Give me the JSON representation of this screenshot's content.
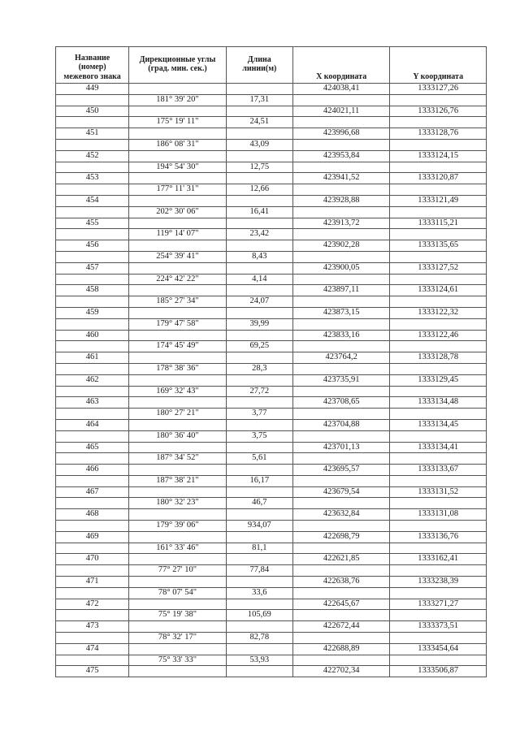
{
  "table": {
    "headers": {
      "name": [
        "Название",
        "(номер)",
        "межевого знака"
      ],
      "angle": [
        "Дирекционные углы",
        "(град. мин. сек.)"
      ],
      "length": [
        "Длина",
        "линии(м)"
      ],
      "x": [
        "X координата"
      ],
      "y": [
        "Y координата"
      ]
    },
    "points": [
      {
        "name": "449",
        "x": "424038,41",
        "y": "1333127,26"
      },
      {
        "name": "450",
        "x": "424021,11",
        "y": "1333126,76"
      },
      {
        "name": "451",
        "x": "423996,68",
        "y": "1333128,76"
      },
      {
        "name": "452",
        "x": "423953,84",
        "y": "1333124,15"
      },
      {
        "name": "453",
        "x": "423941,52",
        "y": "1333120,87"
      },
      {
        "name": "454",
        "x": "423928,88",
        "y": "1333121,49"
      },
      {
        "name": "455",
        "x": "423913,72",
        "y": "1333115,21"
      },
      {
        "name": "456",
        "x": "423902,28",
        "y": "1333135,65"
      },
      {
        "name": "457",
        "x": "423900,05",
        "y": "1333127,52"
      },
      {
        "name": "458",
        "x": "423897,11",
        "y": "1333124,61"
      },
      {
        "name": "459",
        "x": "423873,15",
        "y": "1333122,32"
      },
      {
        "name": "460",
        "x": "423833,16",
        "y": "1333122,46"
      },
      {
        "name": "461",
        "x": "423764,2",
        "y": "1333128,78"
      },
      {
        "name": "462",
        "x": "423735,91",
        "y": "1333129,45"
      },
      {
        "name": "463",
        "x": "423708,65",
        "y": "1333134,48"
      },
      {
        "name": "464",
        "x": "423704,88",
        "y": "1333134,45"
      },
      {
        "name": "465",
        "x": "423701,13",
        "y": "1333134,41"
      },
      {
        "name": "466",
        "x": "423695,57",
        "y": "1333133,67"
      },
      {
        "name": "467",
        "x": "423679,54",
        "y": "1333131,52"
      },
      {
        "name": "468",
        "x": "423632,84",
        "y": "1333131,08"
      },
      {
        "name": "469",
        "x": "422698,79",
        "y": "1333136,76"
      },
      {
        "name": "470",
        "x": "422621,85",
        "y": "1333162,41"
      },
      {
        "name": "471",
        "x": "422638,76",
        "y": "1333238,39"
      },
      {
        "name": "472",
        "x": "422645,67",
        "y": "1333271,27"
      },
      {
        "name": "473",
        "x": "422672,44",
        "y": "1333373,51"
      },
      {
        "name": "474",
        "x": "422688,89",
        "y": "1333454,64"
      },
      {
        "name": "475",
        "x": "422702,34",
        "y": "1333506,87"
      }
    ],
    "segments": [
      {
        "angle": "181° 39' 20\"",
        "length": "17,31"
      },
      {
        "angle": "175° 19' 11\"",
        "length": "24,51"
      },
      {
        "angle": "186° 08' 31\"",
        "length": "43,09"
      },
      {
        "angle": "194° 54' 30\"",
        "length": "12,75"
      },
      {
        "angle": "177° 11' 31\"",
        "length": "12,66"
      },
      {
        "angle": "202° 30' 06\"",
        "length": "16,41"
      },
      {
        "angle": "119° 14' 07\"",
        "length": "23,42"
      },
      {
        "angle": "254° 39' 41\"",
        "length": "8,43"
      },
      {
        "angle": "224° 42' 22\"",
        "length": "4,14"
      },
      {
        "angle": "185° 27' 34\"",
        "length": "24,07"
      },
      {
        "angle": "179° 47' 58\"",
        "length": "39,99"
      },
      {
        "angle": "174° 45' 49\"",
        "length": "69,25"
      },
      {
        "angle": "178° 38' 36\"",
        "length": "28,3"
      },
      {
        "angle": "169° 32' 43\"",
        "length": "27,72"
      },
      {
        "angle": "180° 27' 21\"",
        "length": "3,77"
      },
      {
        "angle": "180° 36' 40\"",
        "length": "3,75"
      },
      {
        "angle": "187° 34' 52\"",
        "length": "5,61"
      },
      {
        "angle": "187° 38' 21\"",
        "length": "16,17"
      },
      {
        "angle": "180° 32' 23\"",
        "length": "46,7"
      },
      {
        "angle": "179° 39' 06\"",
        "length": "934,07"
      },
      {
        "angle": "161° 33' 46\"",
        "length": "81,1"
      },
      {
        "angle": "77° 27' 10\"",
        "length": "77,84"
      },
      {
        "angle": "78° 07' 54\"",
        "length": "33,6"
      },
      {
        "angle": "75° 19' 38\"",
        "length": "105,69"
      },
      {
        "angle": "78° 32' 17\"",
        "length": "82,78"
      },
      {
        "angle": "75° 33' 33\"",
        "length": "53,93"
      }
    ]
  }
}
